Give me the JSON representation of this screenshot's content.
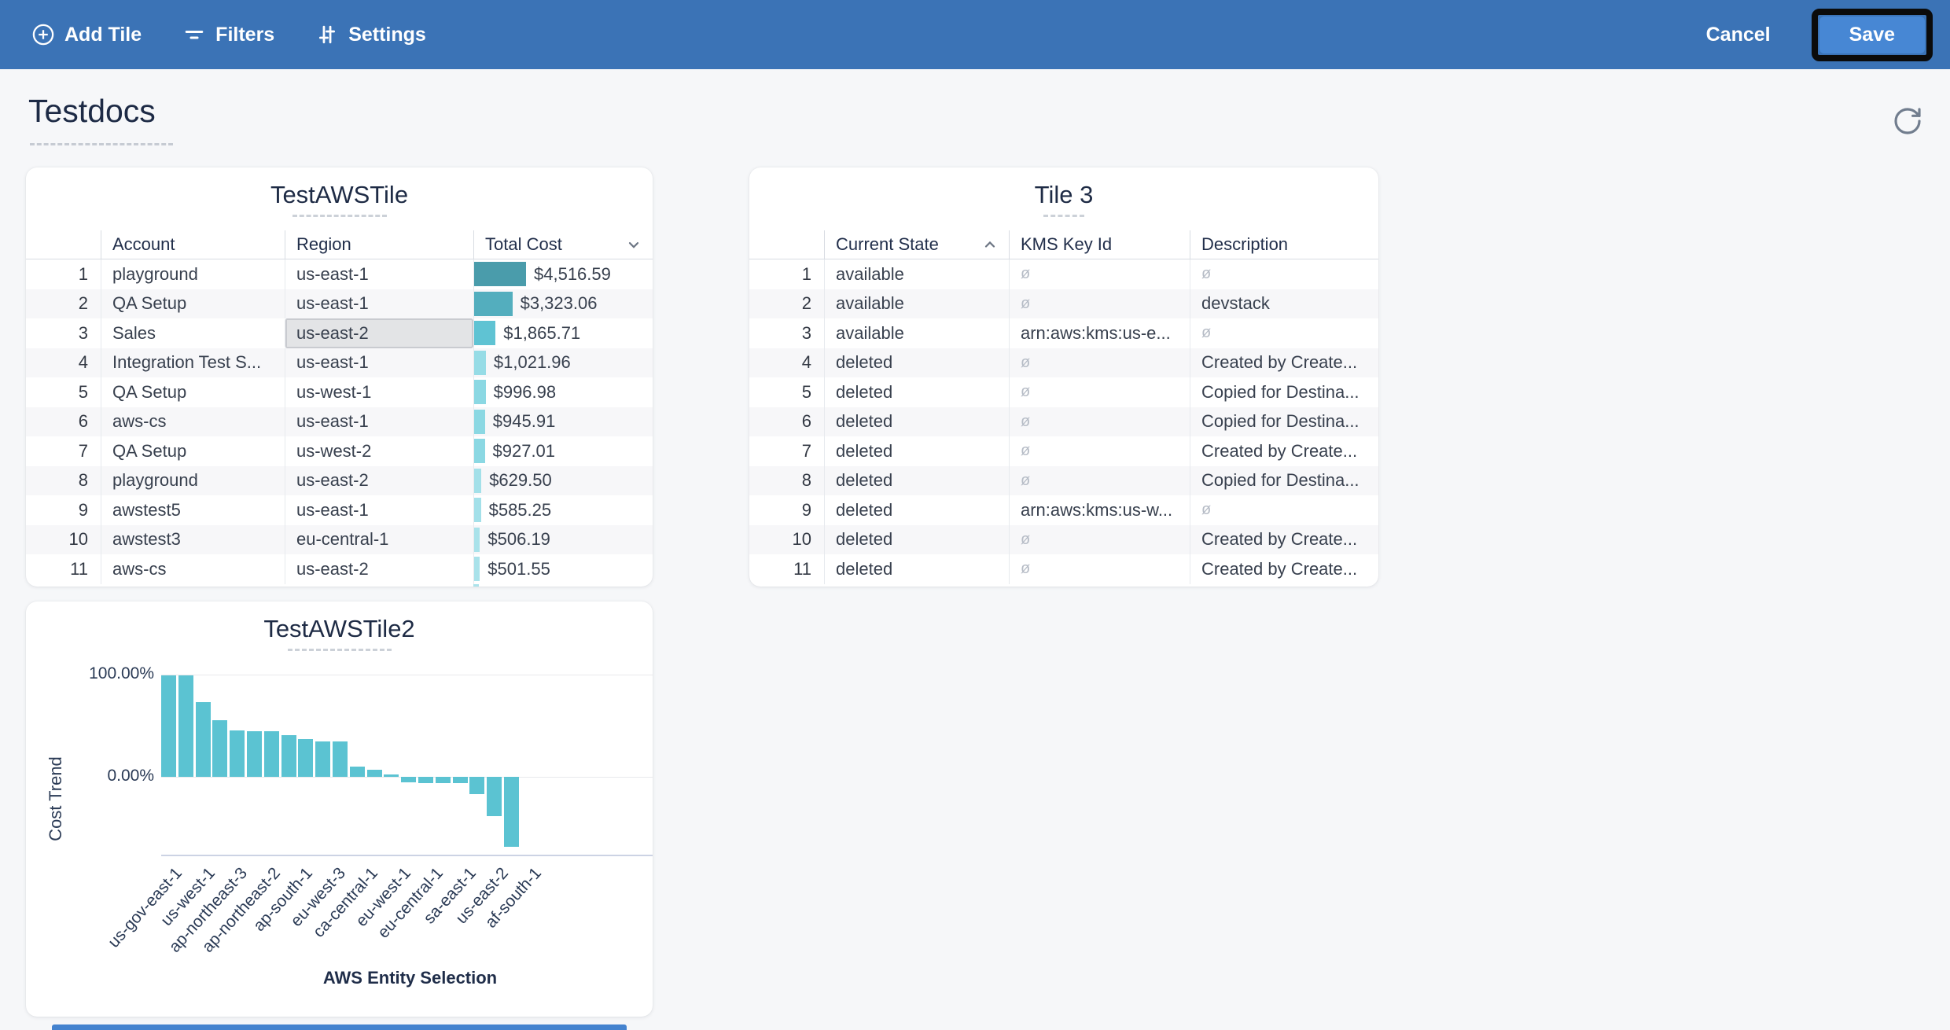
{
  "toolbar": {
    "add_tile_label": "Add Tile",
    "filters_label": "Filters",
    "settings_label": "Settings",
    "cancel_label": "Cancel",
    "save_label": "Save",
    "colors": {
      "bar": "#3B73B6",
      "save_button": "#4787D4",
      "save_outline": "#0B0B0B"
    }
  },
  "page": {
    "title": "Testdocs"
  },
  "icons": {
    "add-tile-icon": "circle-plus",
    "filters-icon": "filter-lines",
    "settings-icon": "sliders",
    "refresh-icon": "rotate-cw-arrow",
    "sort-desc-icon": "chevron-down",
    "sort-asc-icon": "chevron-up",
    "null-value-icon": "ø"
  },
  "tile1": {
    "title": "TestAWSTile",
    "columns": [
      "Account",
      "Region",
      "Total Cost"
    ],
    "sort": {
      "column": "Total Cost",
      "direction": "desc"
    },
    "max_cost": 4516.59,
    "selected_cell": {
      "row": 3,
      "column": "Region"
    },
    "rows": [
      {
        "n": "1",
        "account": "playground",
        "region": "us-east-1",
        "cost": "$4,516.59",
        "value": 4516.59,
        "bar_color": "#4A9CAB"
      },
      {
        "n": "2",
        "account": "QA Setup",
        "region": "us-east-1",
        "cost": "$3,323.06",
        "value": 3323.06,
        "bar_color": "#53AEBE"
      },
      {
        "n": "3",
        "account": "Sales",
        "region": "us-east-2",
        "cost": "$1,865.71",
        "value": 1865.71,
        "bar_color": "#5FC3D3",
        "region_selected": true
      },
      {
        "n": "4",
        "account": "Integration Test S...",
        "region": "us-east-1",
        "cost": "$1,021.96",
        "value": 1021.96,
        "bar_color": "#96DCE6"
      },
      {
        "n": "5",
        "account": "QA Setup",
        "region": "us-west-1",
        "cost": "$996.98",
        "value": 996.98,
        "bar_color": "#8BD8E3"
      },
      {
        "n": "6",
        "account": "aws-cs",
        "region": "us-east-1",
        "cost": "$945.91",
        "value": 945.91,
        "bar_color": "#8BD8E3"
      },
      {
        "n": "7",
        "account": "QA Setup",
        "region": "us-west-2",
        "cost": "$927.01",
        "value": 927.01,
        "bar_color": "#8BD8E3"
      },
      {
        "n": "8",
        "account": "playground",
        "region": "us-east-2",
        "cost": "$629.50",
        "value": 629.5,
        "bar_color": "#A3E0E9"
      },
      {
        "n": "9",
        "account": "awstest5",
        "region": "us-east-1",
        "cost": "$585.25",
        "value": 585.25,
        "bar_color": "#A3E0E9"
      },
      {
        "n": "10",
        "account": "awstest3",
        "region": "eu-central-1",
        "cost": "$506.19",
        "value": 506.19,
        "bar_color": "#A9E2EA"
      },
      {
        "n": "11",
        "account": "aws-cs",
        "region": "us-east-2",
        "cost": "$501.55",
        "value": 501.55,
        "bar_color": "#A9E2EA"
      }
    ]
  },
  "tile2": {
    "title": "Tile 3",
    "columns": [
      "Current State",
      "KMS Key Id",
      "Description"
    ],
    "sort": {
      "column": "Current State",
      "direction": "asc"
    },
    "null_glyph": "ø",
    "rows": [
      {
        "n": "1",
        "state": "available",
        "kms": null,
        "desc": null
      },
      {
        "n": "2",
        "state": "available",
        "kms": null,
        "desc": "devstack"
      },
      {
        "n": "3",
        "state": "available",
        "kms": "arn:aws:kms:us-e...",
        "desc": null
      },
      {
        "n": "4",
        "state": "deleted",
        "kms": null,
        "desc": "Created by Create..."
      },
      {
        "n": "5",
        "state": "deleted",
        "kms": null,
        "desc": "Copied for Destina..."
      },
      {
        "n": "6",
        "state": "deleted",
        "kms": null,
        "desc": "Copied for Destina..."
      },
      {
        "n": "7",
        "state": "deleted",
        "kms": null,
        "desc": "Created by Create..."
      },
      {
        "n": "8",
        "state": "deleted",
        "kms": null,
        "desc": "Copied for Destina..."
      },
      {
        "n": "9",
        "state": "deleted",
        "kms": "arn:aws:kms:us-w...",
        "desc": null
      },
      {
        "n": "10",
        "state": "deleted",
        "kms": null,
        "desc": "Created by Create..."
      },
      {
        "n": "11",
        "state": "deleted",
        "kms": null,
        "desc": "Created by Create..."
      }
    ]
  },
  "chart_data": {
    "type": "bar",
    "title": "TestAWSTile2",
    "xlabel": "AWS Entity Selection",
    "ylabel": "Cost Trend",
    "y_ticks": [
      "100.00%",
      "0.00%"
    ],
    "ylim_pct": [
      -75,
      115
    ],
    "grid": true,
    "bar_color": "#5BC3D2",
    "values_pct": [
      100,
      100,
      74,
      56,
      46,
      45,
      45,
      41,
      37,
      35,
      35,
      10,
      7,
      2,
      -5,
      -6,
      -6,
      -6,
      -17,
      -39,
      -69
    ],
    "x_tick_labels": [
      "us-gov-east-1",
      "us-west-1",
      "ap-northeast-3",
      "ap-northeast-2",
      "ap-south-1",
      "eu-west-3",
      "ca-central-1",
      "eu-west-1",
      "eu-central-1",
      "sa-east-1",
      "us-east-2",
      "af-south-1"
    ]
  }
}
